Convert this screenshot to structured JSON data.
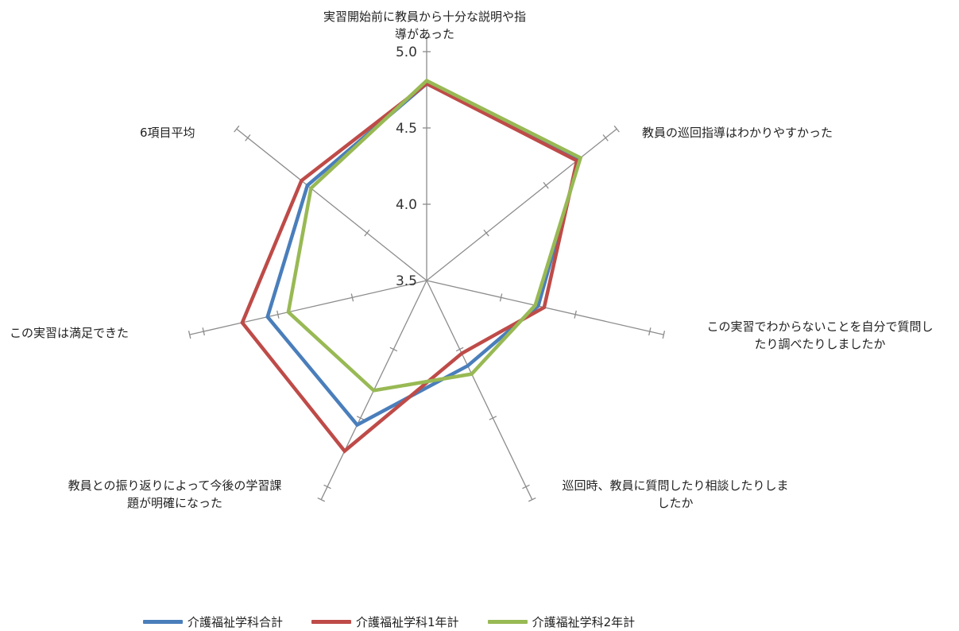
{
  "chart_data": {
    "type": "radar",
    "categories": [
      "実習開始前に教員から十分な説明や指導があった",
      "教員の巡回指導はわかりやすかった",
      "この実習でわからないことを自分で質問したり調べたりしましたか",
      "巡回時、教員に質問したり相談したりしましたか",
      "教員との振り返りによって今後の学習課題が明確になった",
      "この実習は満足できた",
      "6項目平均"
    ],
    "category_lines": [
      [
        "実習開始前に教員から十分な説明や指",
        "導があった"
      ],
      [
        "教員の巡回指導はわかりやすかった"
      ],
      [
        "この実習でわからないことを自分で質問し",
        "たり調べたりしましたか"
      ],
      [
        "巡回時、教員に質問したり相談したりしま",
        "したか"
      ],
      [
        "教員との振り返りによって今後の学習課",
        "題が明確になった"
      ],
      [
        "この実習は満足できた"
      ],
      [
        "6項目平均"
      ]
    ],
    "rlim": [
      3.5,
      5.0
    ],
    "ticks": [
      "3.5",
      "4.0",
      "4.5",
      "5.0"
    ],
    "tick_values": [
      3.5,
      4.0,
      4.5,
      5.0
    ],
    "series": [
      {
        "name": "介護福祉学科合計",
        "color": "#4a7ebb",
        "values": [
          4.79,
          4.78,
          4.25,
          4.12,
          4.55,
          4.57,
          4.5
        ]
      },
      {
        "name": "介護福祉学科1年計",
        "color": "#be4b48",
        "values": [
          4.79,
          4.76,
          4.29,
          4.03,
          4.74,
          4.74,
          4.55
        ]
      },
      {
        "name": "介護福祉学科2年計",
        "color": "#98b954",
        "values": [
          4.81,
          4.79,
          4.23,
          4.18,
          4.3,
          4.43,
          4.47
        ]
      }
    ],
    "legend": "bottom"
  }
}
